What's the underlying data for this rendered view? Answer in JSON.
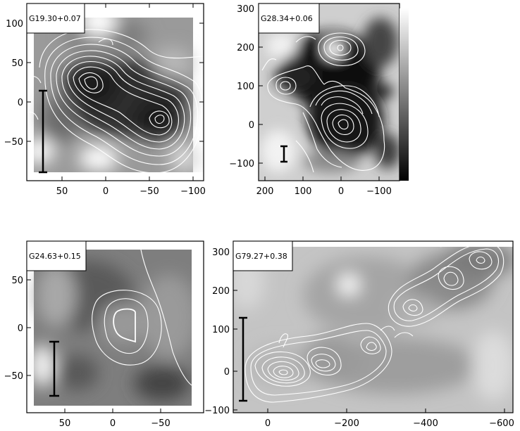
{
  "panels": [
    {
      "label": "G19.30+0.07",
      "x_ticks": [
        "50",
        "0",
        "−50",
        "−100"
      ],
      "y_ticks": [
        "100",
        "50",
        "0",
        "−50"
      ]
    },
    {
      "label": "G28.34+0.06",
      "x_ticks": [
        "200",
        "100",
        "0",
        "−100"
      ],
      "y_ticks": [
        "300",
        "200",
        "100",
        "0",
        "−100"
      ]
    },
    {
      "label": "G24.63+0.15",
      "x_ticks": [
        "50",
        "0",
        "−50"
      ],
      "y_ticks": [
        "50",
        "0",
        "−50"
      ]
    },
    {
      "label": "G79.27+0.38",
      "x_ticks": [
        "0",
        "−200",
        "−400",
        "−600"
      ],
      "y_ticks": [
        "300",
        "200",
        "100",
        "0",
        "−100"
      ]
    }
  ],
  "colors": {
    "frame": "#000000",
    "contour": "#ffffff",
    "colorbar_top": "#ffffff",
    "colorbar_bottom": "#000000"
  }
}
